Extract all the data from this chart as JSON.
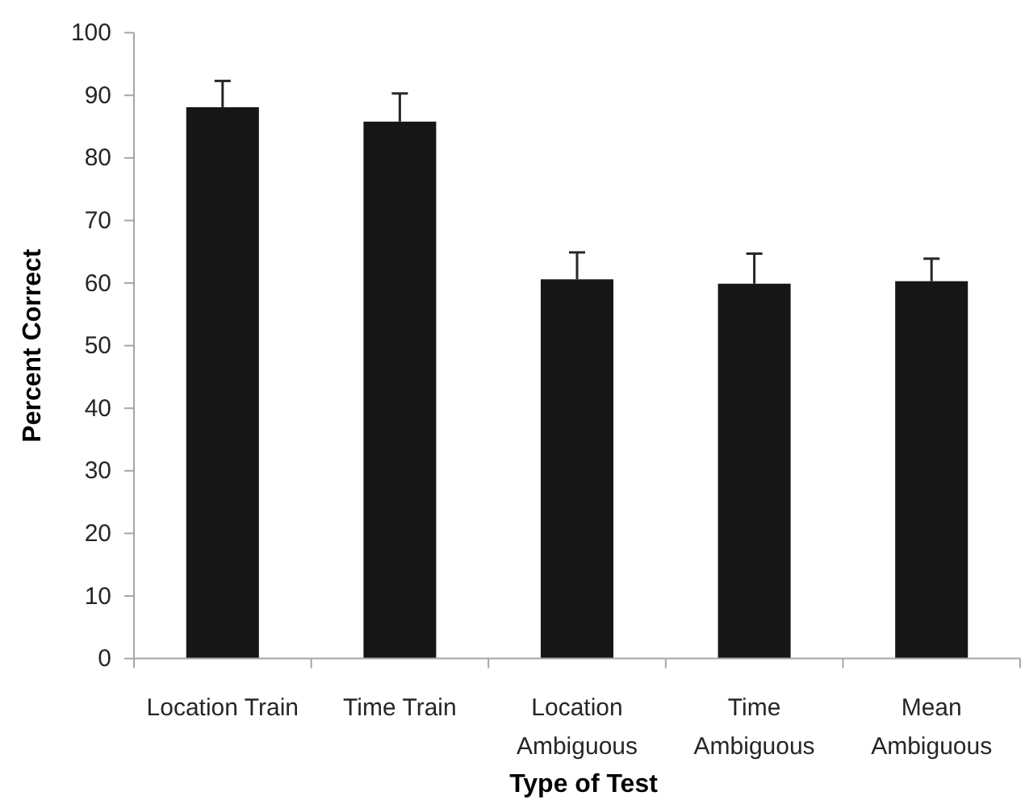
{
  "chart_data": {
    "type": "bar",
    "xlabel": "Type of Test",
    "ylabel": "Percent Correct",
    "categories": [
      "Location Train",
      "Time Train",
      "Location Ambiguous",
      "Time Ambiguous",
      "Mean Ambiguous"
    ],
    "values": [
      88.1,
      85.8,
      60.6,
      59.9,
      60.3
    ],
    "errors": [
      4.2,
      4.5,
      4.3,
      4.8,
      3.6
    ],
    "color": "#161616",
    "ylim": [
      0,
      100
    ],
    "yticks": [
      0,
      10,
      20,
      30,
      40,
      50,
      60,
      70,
      80,
      90,
      100
    ]
  }
}
